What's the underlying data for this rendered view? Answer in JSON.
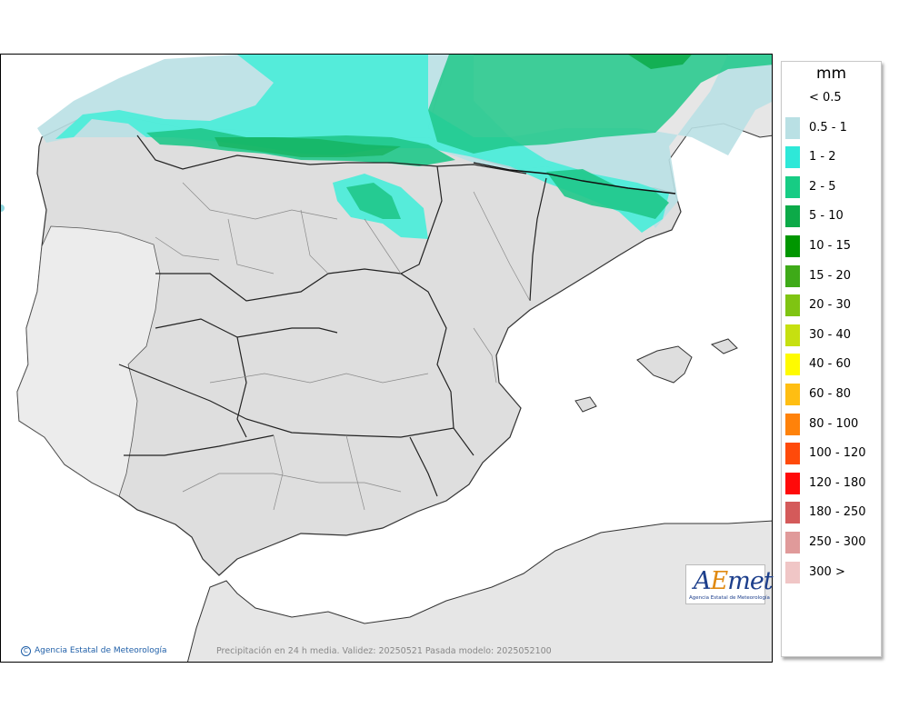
{
  "map": {
    "footer_left": "Agencia Estatal de Meteorología",
    "footer_caption": "Precipitación en 24 h media. Validez: 20250521 Pasada modelo: 2025052100"
  },
  "logo": {
    "text_a": "A",
    "text_e": "E",
    "text_met": "met",
    "subtitle": "Agencia Estatal de Meteorología"
  },
  "legend": {
    "unit": "mm",
    "entries": [
      {
        "label": "< 0.5",
        "color": "#ffffff"
      },
      {
        "label": "0.5 - 1",
        "color": "#b9e0e4"
      },
      {
        "label": "1 - 2",
        "color": "#2ee8d8"
      },
      {
        "label": "2 - 5",
        "color": "#17cc84"
      },
      {
        "label": "5 - 10",
        "color": "#0caa48"
      },
      {
        "label": "10 - 15",
        "color": "#009600"
      },
      {
        "label": "15 - 20",
        "color": "#3eaa18"
      },
      {
        "label": "20 - 30",
        "color": "#7fc412"
      },
      {
        "label": "30 - 40",
        "color": "#c6e010"
      },
      {
        "label": "40 - 60",
        "color": "#fffb00"
      },
      {
        "label": "60 - 80",
        "color": "#ffbe12"
      },
      {
        "label": "80 - 100",
        "color": "#ff820a"
      },
      {
        "label": "100 - 120",
        "color": "#ff4a0a"
      },
      {
        "label": "120 - 180",
        "color": "#ff0a0a"
      },
      {
        "label": "180 - 250",
        "color": "#d45a5a"
      },
      {
        "label": "250 - 300",
        "color": "#e09a9a"
      },
      {
        "label": "300 >",
        "color": "#f0c6c6"
      }
    ]
  }
}
